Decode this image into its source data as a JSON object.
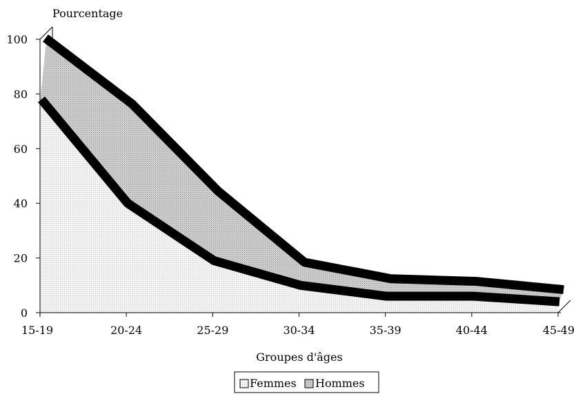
{
  "chart_data": {
    "type": "area",
    "ylabel": "Pourcentage",
    "xlabel": "Groupes d'âges",
    "categories": [
      "15-19",
      "20-24",
      "25-29",
      "30-34",
      "35-39",
      "40-44",
      "45-49"
    ],
    "ylim": [
      0,
      100
    ],
    "yticks": [
      0,
      20,
      40,
      60,
      80,
      100
    ],
    "series": [
      {
        "name": "Femmes",
        "values": [
          77,
          39,
          18,
          9,
          5,
          5,
          3
        ]
      },
      {
        "name": "Hommes",
        "values": [
          98,
          74,
          42,
          16,
          10,
          9,
          6
        ]
      }
    ],
    "legend_position": "bottom-center",
    "grid": false,
    "style": "3d-area",
    "colors": {
      "femmes_fill": "#ececec",
      "hommes_fill": "#c9c9c9",
      "edge": "#000000",
      "axis": "#000000"
    }
  }
}
